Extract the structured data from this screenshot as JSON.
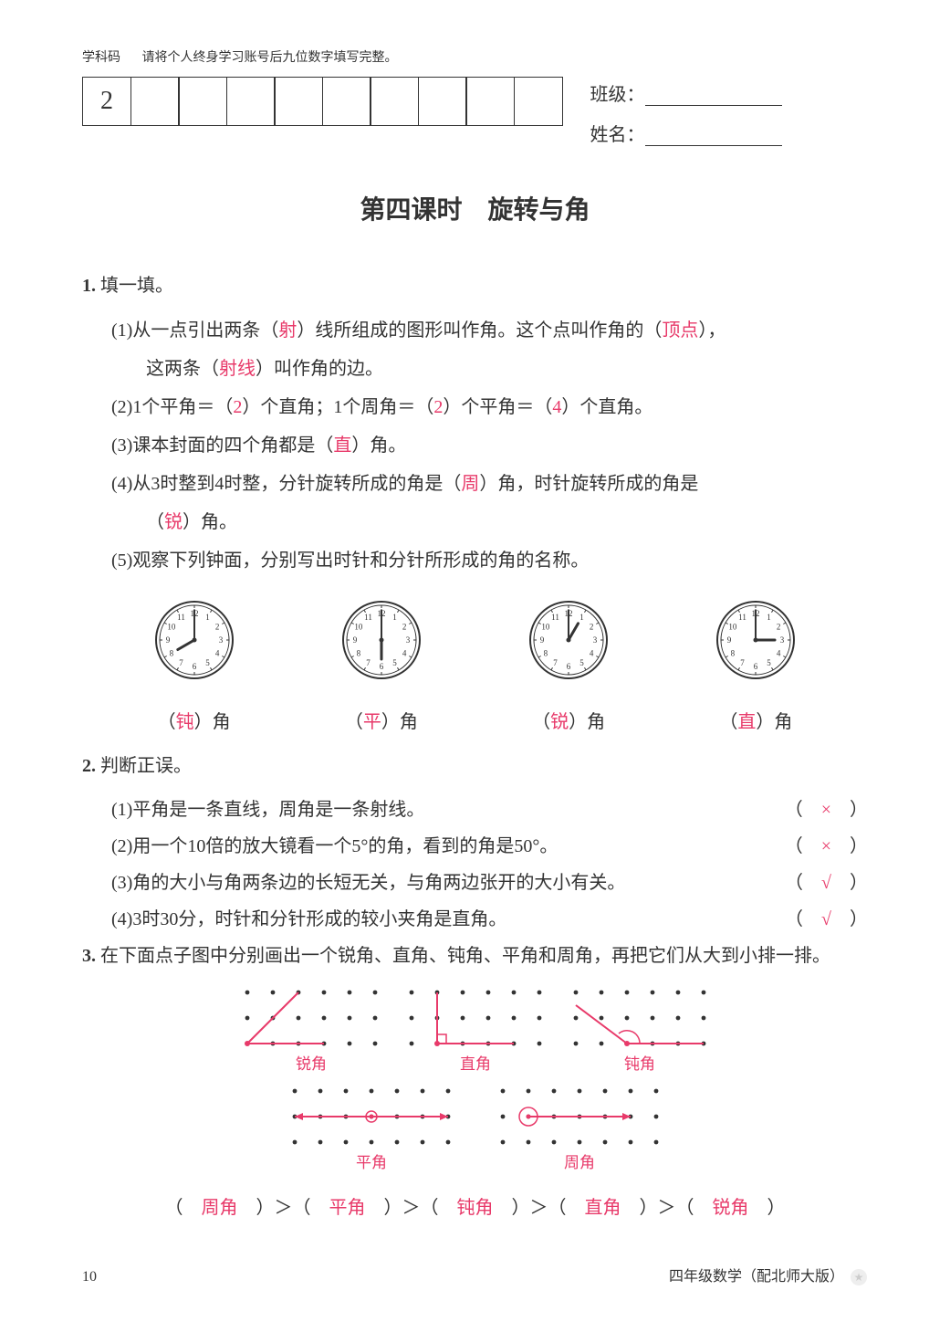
{
  "header": {
    "subject_code_label": "学科码",
    "instruction": "请将个人终身学习账号后九位数字填写完整。",
    "first_box_value": "2",
    "box_count": 10,
    "class_label": "班级：",
    "name_label": "姓名："
  },
  "title": "第四课时　旋转与角",
  "q1": {
    "num": "1.",
    "stem": "填一填。",
    "s1": {
      "pre": "(1)从一点引出两条（",
      "a1": "射",
      "mid1": "）线所组成的图形叫作角。这个点叫作角的（",
      "a2": "顶点",
      "mid2": "），",
      "line2_pre": "这两条（",
      "a3": "射线",
      "line2_post": "）叫作角的边。"
    },
    "s2": {
      "pre": "(2)1个平角＝（",
      "a1": "2",
      "mid1": "）个直角；1个周角＝（",
      "a2": "2",
      "mid2": "）个平角＝（",
      "a3": "4",
      "post": "）个直角。"
    },
    "s3": {
      "pre": "(3)课本封面的四个角都是（",
      "a1": "直",
      "post": "）角。"
    },
    "s4": {
      "pre": "(4)从3时整到4时整，分针旋转所成的角是（",
      "a1": "周",
      "mid": "）角，时针旋转所成的角是",
      "line2_pre": "（",
      "a2": "锐",
      "line2_post": "）角。"
    },
    "s5": {
      "text": "(5)观察下列钟面，分别写出时针和分针所形成的角的名称。"
    },
    "clocks": [
      {
        "hour": 8,
        "minute": 0,
        "answer": "钝"
      },
      {
        "hour": 6,
        "minute": 0,
        "answer": "平"
      },
      {
        "hour": 1,
        "minute": 0,
        "answer": "锐"
      },
      {
        "hour": 3,
        "minute": 0,
        "answer": "直"
      }
    ],
    "clock_label_pre": "（",
    "clock_label_post": "）角"
  },
  "q2": {
    "num": "2.",
    "stem": "判断正误。",
    "items": [
      {
        "text": "(1)平角是一条直线，周角是一条射线。",
        "ans": "×"
      },
      {
        "text": "(2)用一个10倍的放大镜看一个5°的角，看到的角是50°。",
        "ans": "×"
      },
      {
        "text": "(3)角的大小与角两条边的长短无关，与角两边张开的大小有关。",
        "ans": "√"
      },
      {
        "text": "(4)3时30分，时针和分针形成的较小夹角是直角。",
        "ans": "√"
      }
    ],
    "paren_pre": "（",
    "paren_post": "）"
  },
  "q3": {
    "num": "3.",
    "stem": "在下面点子图中分别画出一个锐角、直角、钝角、平角和周角，再把它们从大到小排一排。",
    "angles_row1": [
      {
        "label": "锐角",
        "type": "acute"
      },
      {
        "label": "直角",
        "type": "right"
      },
      {
        "label": "钝角",
        "type": "obtuse"
      }
    ],
    "angles_row2": [
      {
        "label": "平角",
        "type": "straight"
      },
      {
        "label": "周角",
        "type": "full"
      }
    ],
    "order": [
      "周角",
      "平角",
      "钝角",
      "直角",
      "锐角"
    ],
    "order_sep": "＞",
    "order_paren_pre": "（",
    "order_paren_post": "）"
  },
  "footer": {
    "page": "10",
    "edition": "四年级数学（配北师大版）"
  },
  "style": {
    "answer_color": "#e83a6a",
    "text_color": "#333333",
    "dot_color": "#333333",
    "angle_line_color": "#e83a6a",
    "clock": {
      "radius": 42,
      "stroke": "#333333",
      "face_fill": "#ffffff",
      "num_fontsize": 9
    },
    "dot_spacing": 28,
    "dot_radius": 2.4
  }
}
